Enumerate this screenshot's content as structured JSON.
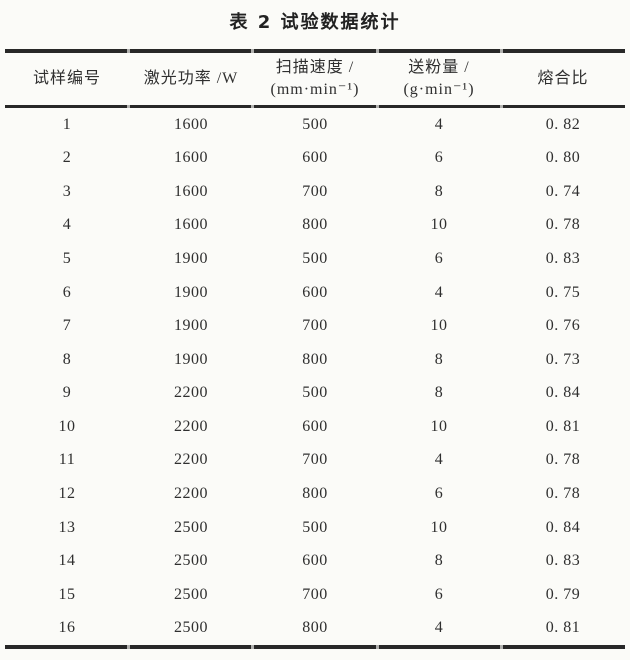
{
  "page": {
    "background": "#fbfbf8",
    "ink_color": "#2f2f2f",
    "rule_color": "#282828"
  },
  "title": "表 2  试验数据统计",
  "table": {
    "columns": [
      {
        "name": "sample-no",
        "header_lines": [
          "试样编号"
        ]
      },
      {
        "name": "laser-power",
        "header_lines": [
          "激光功率 /W"
        ]
      },
      {
        "name": "scan-speed",
        "header_lines": [
          "扫描速度 /",
          "(mm·min⁻¹)"
        ]
      },
      {
        "name": "powder-feed",
        "header_lines": [
          "送粉量 /",
          "(g·min⁻¹)"
        ]
      },
      {
        "name": "fusion-ratio",
        "header_lines": [
          "熔合比"
        ]
      }
    ],
    "rows": [
      [
        "1",
        "1600",
        "500",
        "4",
        "0. 82"
      ],
      [
        "2",
        "1600",
        "600",
        "6",
        "0. 80"
      ],
      [
        "3",
        "1600",
        "700",
        "8",
        "0. 74"
      ],
      [
        "4",
        "1600",
        "800",
        "10",
        "0. 78"
      ],
      [
        "5",
        "1900",
        "500",
        "6",
        "0. 83"
      ],
      [
        "6",
        "1900",
        "600",
        "4",
        "0. 75"
      ],
      [
        "7",
        "1900",
        "700",
        "10",
        "0. 76"
      ],
      [
        "8",
        "1900",
        "800",
        "8",
        "0. 73"
      ],
      [
        "9",
        "2200",
        "500",
        "8",
        "0. 84"
      ],
      [
        "10",
        "2200",
        "600",
        "10",
        "0. 81"
      ],
      [
        "11",
        "2200",
        "700",
        "4",
        "0. 78"
      ],
      [
        "12",
        "2200",
        "800",
        "6",
        "0. 78"
      ],
      [
        "13",
        "2500",
        "500",
        "10",
        "0. 84"
      ],
      [
        "14",
        "2500",
        "600",
        "8",
        "0. 83"
      ],
      [
        "15",
        "2500",
        "700",
        "6",
        "0. 79"
      ],
      [
        "16",
        "2500",
        "800",
        "4",
        "0. 81"
      ]
    ]
  }
}
